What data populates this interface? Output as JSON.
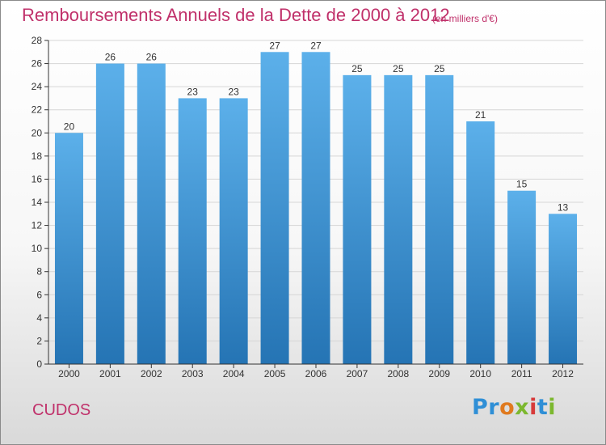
{
  "header": {
    "title": "Remboursements Annuels de la Dette de 2000 à 2012",
    "unit_note": "(en milliers d'€)"
  },
  "footer": {
    "town": "CUDOS",
    "logo_text": "Proxiti"
  },
  "chart_data": {
    "type": "bar",
    "categories": [
      "2000",
      "2001",
      "2002",
      "2003",
      "2004",
      "2005",
      "2006",
      "2007",
      "2008",
      "2009",
      "2010",
      "2011",
      "2012"
    ],
    "values": [
      20,
      26,
      26,
      23,
      23,
      27,
      27,
      25,
      25,
      25,
      21,
      15,
      13
    ],
    "title": "Remboursements Annuels de la Dette de 2000 à 2012",
    "subtitle": "(en milliers d'€)",
    "xlabel": "",
    "ylabel": "",
    "ylim": [
      0,
      28
    ],
    "yticks": [
      0,
      2,
      4,
      6,
      8,
      10,
      12,
      14,
      16,
      18,
      20,
      22,
      24,
      26,
      28
    ],
    "grid": true,
    "legend": "none",
    "colors": {
      "bar_top": "#5aaee8",
      "bar_bottom": "#2a79b8",
      "grid": "#d6d6d6",
      "axis": "#333333",
      "title": "#c0306a"
    }
  }
}
